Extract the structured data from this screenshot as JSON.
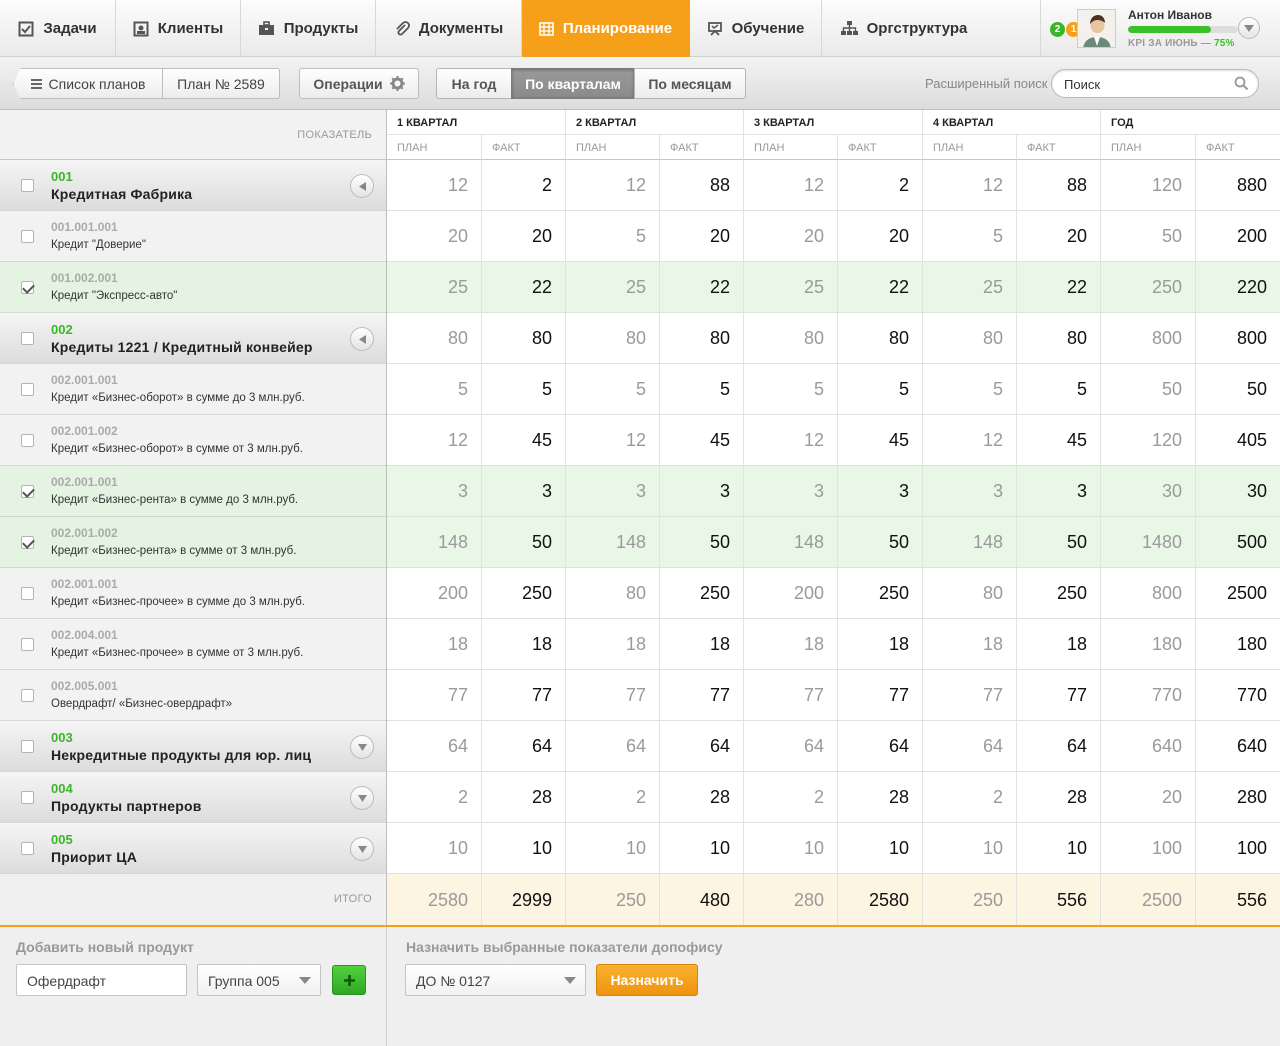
{
  "nav": {
    "items": [
      {
        "label": "Задачи",
        "icon": "checkbox-icon"
      },
      {
        "label": "Клиенты",
        "icon": "client-card-icon"
      },
      {
        "label": "Продукты",
        "icon": "briefcase-icon"
      },
      {
        "label": "Документы",
        "icon": "paperclip-icon"
      },
      {
        "label": "Планирование",
        "icon": "calendar-icon"
      },
      {
        "label": "Обучение",
        "icon": "training-icon"
      },
      {
        "label": "Оргструктура",
        "icon": "org-chart-icon"
      }
    ],
    "active_index": 4
  },
  "user": {
    "messages_count": "2",
    "notifications_count": "1",
    "name": "Антон Иванов",
    "kpi_label": "KPI ЗА ИЮНЬ —",
    "kpi_percent": "75%",
    "kpi_value": 0.75
  },
  "toolbar": {
    "plan_list_label": "Список планов",
    "plan_label": "План № 2589",
    "operations_label": "Операции",
    "period_tabs": [
      "На год",
      "По кварталам",
      "По месяцам"
    ],
    "active_period_index": 1,
    "advanced_search_label": "Расширенный поиск",
    "search_placeholder": "Поиск"
  },
  "table": {
    "indicator_header": "ПОКАЗАТЕЛЬ",
    "quarters": [
      "1 КВАРТАЛ",
      "2 КВАРТАЛ",
      "3 КВАРТАЛ",
      "4 КВАРТАЛ",
      "ГОД"
    ],
    "plan_label": "ПЛАН",
    "fact_label": "ФАКТ",
    "rows": [
      {
        "type": "group",
        "code": "001",
        "name": "Кредитная Фабрика",
        "checked": false,
        "expanded": true,
        "values": [
          12,
          2,
          12,
          88,
          12,
          2,
          12,
          88,
          120,
          880
        ]
      },
      {
        "type": "sub",
        "code": "001.001.001",
        "name": "Кредит \"Доверие\"",
        "checked": false,
        "values": [
          20,
          20,
          5,
          20,
          20,
          20,
          5,
          20,
          50,
          200
        ]
      },
      {
        "type": "sub",
        "code": "001.002.001",
        "name": "Кредит \"Экспресс-авто\"",
        "checked": true,
        "values": [
          25,
          22,
          25,
          22,
          25,
          22,
          25,
          22,
          250,
          220
        ]
      },
      {
        "type": "group",
        "code": "002",
        "name": "Кредиты 1221 / Кредитный конвейер",
        "checked": false,
        "expanded": true,
        "values": [
          80,
          80,
          80,
          80,
          80,
          80,
          80,
          80,
          800,
          800
        ]
      },
      {
        "type": "sub",
        "code": "002.001.001",
        "name": "Кредит «Бизнес-оборот» в сумме до 3 млн.руб.",
        "checked": false,
        "values": [
          5,
          5,
          5,
          5,
          5,
          5,
          5,
          5,
          50,
          50
        ]
      },
      {
        "type": "sub",
        "code": "002.001.002",
        "name": "Кредит «Бизнес-оборот» в сумме от 3  млн.руб.",
        "checked": false,
        "values": [
          12,
          45,
          12,
          45,
          12,
          45,
          12,
          45,
          120,
          405
        ]
      },
      {
        "type": "sub",
        "code": "002.001.001",
        "name": "Кредит «Бизнес-рента» в сумме до 3 млн.руб.",
        "checked": true,
        "values": [
          3,
          3,
          3,
          3,
          3,
          3,
          3,
          3,
          30,
          30
        ]
      },
      {
        "type": "sub",
        "code": "002.001.002",
        "name": "Кредит «Бизнес-рента» в сумме от 3 млн.руб.",
        "checked": true,
        "values": [
          148,
          50,
          148,
          50,
          148,
          50,
          148,
          50,
          1480,
          500
        ]
      },
      {
        "type": "sub",
        "code": "002.001.001",
        "name": "Кредит «Бизнес-прочее» в сумме до 3 млн.руб.",
        "checked": false,
        "values": [
          200,
          250,
          80,
          250,
          200,
          250,
          80,
          250,
          800,
          2500
        ]
      },
      {
        "type": "sub",
        "code": "002.004.001",
        "name": "Кредит  «Бизнес-прочее» в сумме от 3 млн.руб.",
        "checked": false,
        "values": [
          18,
          18,
          18,
          18,
          18,
          18,
          18,
          18,
          180,
          180
        ]
      },
      {
        "type": "sub",
        "code": "002.005.001",
        "name": "Овердрафт/ «Бизнес-овердрафт»",
        "checked": false,
        "values": [
          77,
          77,
          77,
          77,
          77,
          77,
          77,
          77,
          770,
          770
        ]
      },
      {
        "type": "group",
        "code": "003",
        "name": "Некредитные продукты для юр. лиц",
        "checked": false,
        "expanded": false,
        "values": [
          64,
          64,
          64,
          64,
          64,
          64,
          64,
          64,
          640,
          640
        ]
      },
      {
        "type": "group",
        "code": "004",
        "name": "Продукты партнеров",
        "checked": false,
        "expanded": false,
        "values": [
          2,
          28,
          2,
          28,
          2,
          28,
          2,
          28,
          20,
          280
        ]
      },
      {
        "type": "group",
        "code": "005",
        "name": "Приорит ЦА",
        "checked": false,
        "expanded": false,
        "values": [
          10,
          10,
          10,
          10,
          10,
          10,
          10,
          10,
          100,
          100
        ]
      }
    ],
    "total_label": "ИТОГО",
    "total_values": [
      2580,
      2999,
      250,
      480,
      280,
      2580,
      250,
      556,
      2500,
      556
    ]
  },
  "bottom": {
    "add_title": "Добавить новый продукт",
    "product_value": "Офердрафт",
    "group_value": "Группа 005",
    "assign_title": "Назначить выбранные показатели допофису",
    "office_value": "ДО № 0127",
    "assign_button": "Назначить"
  },
  "colors": {
    "accent": "#f6a01a",
    "green": "#3bb52a",
    "selected_row": "#e9f7e7",
    "total_row": "#fdf4e2"
  }
}
